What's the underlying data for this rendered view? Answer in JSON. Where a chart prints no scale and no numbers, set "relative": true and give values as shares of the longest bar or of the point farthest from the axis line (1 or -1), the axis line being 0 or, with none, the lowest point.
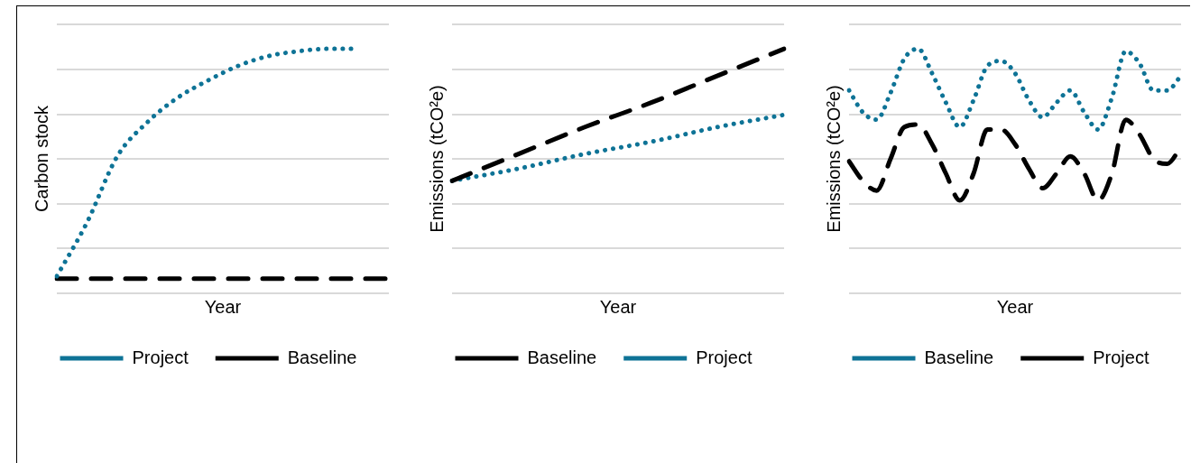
{
  "chart_data": [
    {
      "type": "line",
      "ylabel": "Carbon stock",
      "xlabel": "Year",
      "relative": true,
      "grid": "y",
      "legend": "bottom",
      "marker": "none",
      "categories": [
        null,
        null,
        null,
        null,
        null,
        null,
        null,
        null,
        null,
        null,
        null,
        null
      ],
      "series": [
        {
          "name": "Project",
          "color": "#0e7396",
          "line_style": "dotted",
          "values": [
            0.07,
            0.29,
            0.56,
            0.7,
            0.8,
            0.87,
            0.93,
            0.97,
            0.99,
            1.0,
            1.0,
            null
          ]
        },
        {
          "name": "Baseline",
          "color": "#000000",
          "line_style": "dashed",
          "values": [
            0.06,
            0.06,
            0.06,
            0.06,
            0.06,
            0.06,
            0.06,
            0.06,
            0.06,
            0.06,
            0.06,
            0.06
          ]
        }
      ]
    },
    {
      "type": "line",
      "ylabel": "Emissions (tCO²e)",
      "xlabel": "Year",
      "relative": true,
      "grid": "y",
      "legend": "bottom",
      "marker": "none",
      "categories": [
        null,
        null,
        null,
        null,
        null,
        null
      ],
      "series": [
        {
          "name": "Baseline",
          "color": "#000000",
          "line_style": "dashed",
          "values": [
            0.46,
            0.57,
            0.68,
            0.78,
            0.89,
            1.0
          ]
        },
        {
          "name": "Project",
          "color": "#0e7396",
          "line_style": "dotted",
          "values": [
            0.46,
            0.51,
            0.57,
            0.62,
            0.68,
            0.73
          ]
        }
      ]
    },
    {
      "type": "line",
      "ylabel": "Emissions (tCO²e)",
      "xlabel": "Year",
      "relative": true,
      "grid": "y",
      "legend": "bottom",
      "marker": "none",
      "categories": [
        null,
        null,
        null,
        null,
        null,
        null,
        null,
        null,
        null,
        null,
        null,
        null,
        null,
        null,
        null,
        null,
        null,
        null,
        null,
        null,
        null,
        null,
        null,
        null,
        null
      ],
      "series": [
        {
          "name": "Baseline",
          "color": "#0e7396",
          "line_style": "dotted",
          "values": [
            0.83,
            0.74,
            0.71,
            0.82,
            0.96,
            1.0,
            0.9,
            0.78,
            0.68,
            0.79,
            0.93,
            0.95,
            0.9,
            0.79,
            0.72,
            0.78,
            0.83,
            0.74,
            0.67,
            0.8,
            0.99,
            0.94,
            0.83,
            0.83,
            0.89
          ]
        },
        {
          "name": "Project",
          "color": "#000000",
          "line_style": "dashed",
          "values": [
            0.54,
            0.46,
            0.42,
            0.55,
            0.68,
            0.69,
            0.61,
            0.49,
            0.38,
            0.49,
            0.67,
            0.67,
            0.61,
            0.51,
            0.43,
            0.49,
            0.56,
            0.49,
            0.38,
            0.49,
            0.71,
            0.65,
            0.55,
            0.53,
            0.6
          ]
        }
      ]
    }
  ]
}
